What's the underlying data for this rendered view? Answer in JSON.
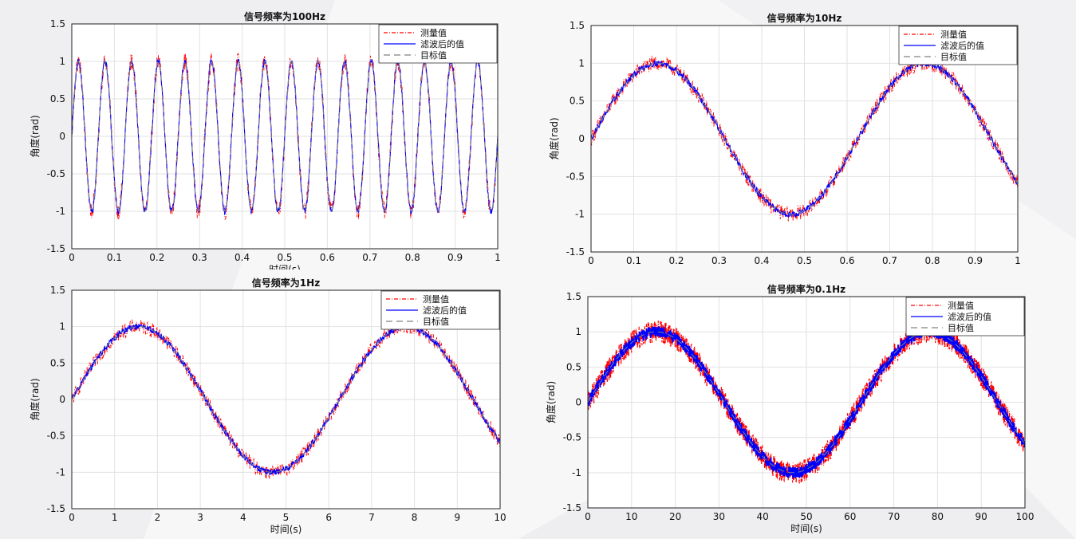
{
  "chart_data": [
    {
      "type": "line",
      "title": "信号频率为100Hz",
      "xlabel": "时间(s)",
      "ylabel": "角度(rad)",
      "xlim": [
        0,
        1
      ],
      "ylim": [
        -1.5,
        1.5
      ],
      "xticks": [
        "0",
        "0.1",
        "0.2",
        "0.3",
        "0.4",
        "0.5",
        "0.6",
        "0.7",
        "0.8",
        "0.9",
        "1"
      ],
      "yticks": [
        "1.5",
        "1",
        "0.5",
        "0",
        "-0.5",
        "-1",
        "-1.5"
      ],
      "grid": true,
      "legend_position": "top-right",
      "series": [
        {
          "name": "测量值",
          "style": "dash-dot",
          "color": "#ff0000",
          "signal": {
            "amplitude": 1,
            "cycles": 16,
            "noise": 0.12
          }
        },
        {
          "name": "滤波后的值",
          "style": "solid",
          "color": "#0000ff",
          "signal": {
            "amplitude": 1,
            "cycles": 16,
            "noise": 0.04
          }
        },
        {
          "name": "目标值",
          "style": "dashed",
          "color": "#808080",
          "signal": {
            "amplitude": 1,
            "cycles": 16,
            "noise": 0
          }
        }
      ]
    },
    {
      "type": "line",
      "title": "信号频率为10Hz",
      "xlabel": "",
      "ylabel": "角度(rad)",
      "xlim": [
        0,
        1
      ],
      "ylim": [
        -1.5,
        1.5
      ],
      "xticks": [
        "0",
        "0.1",
        "0.2",
        "0.3",
        "0.4",
        "0.5",
        "0.6",
        "0.7",
        "0.8",
        "0.9",
        "1"
      ],
      "yticks": [
        "1.5",
        "1",
        "0.5",
        "0",
        "-0.5",
        "-1",
        "-1.5"
      ],
      "grid": true,
      "legend_position": "top-right",
      "series": [
        {
          "name": "测量值",
          "style": "dash-dot",
          "color": "#ff0000",
          "signal": {
            "amplitude": 1,
            "cycles": 1.6,
            "noise": 0.1
          }
        },
        {
          "name": "滤波后的值",
          "style": "solid",
          "color": "#0000ff",
          "signal": {
            "amplitude": 1,
            "cycles": 1.6,
            "noise": 0.04
          }
        },
        {
          "name": "目标值",
          "style": "dashed",
          "color": "#808080",
          "signal": {
            "amplitude": 1,
            "cycles": 1.6,
            "noise": 0
          }
        }
      ]
    },
    {
      "type": "line",
      "title": "信号频率为1Hz",
      "xlabel": "时间(s)",
      "ylabel": "角度(rad)",
      "xlim": [
        0,
        10
      ],
      "ylim": [
        -1.5,
        1.5
      ],
      "xticks": [
        "0",
        "1",
        "2",
        "3",
        "4",
        "5",
        "6",
        "7",
        "8",
        "9",
        "10"
      ],
      "yticks": [
        "1.5",
        "1",
        "0.5",
        "0",
        "-0.5",
        "-1",
        "-1.5"
      ],
      "grid": true,
      "legend_position": "top-right",
      "series": [
        {
          "name": "测量值",
          "style": "dash-dot",
          "color": "#ff0000",
          "signal": {
            "amplitude": 1,
            "cycles": 1.6,
            "noise": 0.1
          }
        },
        {
          "name": "滤波后的值",
          "style": "solid",
          "color": "#0000ff",
          "signal": {
            "amplitude": 1,
            "cycles": 1.6,
            "noise": 0.04
          }
        },
        {
          "name": "目标值",
          "style": "dashed",
          "color": "#808080",
          "signal": {
            "amplitude": 1,
            "cycles": 1.6,
            "noise": 0
          }
        }
      ]
    },
    {
      "type": "line",
      "title": "信号频率为0.1Hz",
      "xlabel": "时间(s)",
      "ylabel": "角度(rad)",
      "xlim": [
        0,
        100
      ],
      "ylim": [
        -1.5,
        1.5
      ],
      "xticks": [
        "0",
        "10",
        "20",
        "30",
        "40",
        "50",
        "60",
        "70",
        "80",
        "90",
        "100"
      ],
      "yticks": [
        "1.5",
        "1",
        "0.5",
        "0",
        "-0.5",
        "-1",
        "-1.5"
      ],
      "grid": true,
      "legend_position": "top-right",
      "series": [
        {
          "name": "测量值",
          "style": "dash-dot",
          "color": "#ff0000",
          "signal": {
            "amplitude": 1,
            "cycles": 1.6,
            "noise": 0.16
          }
        },
        {
          "name": "滤波后的值",
          "style": "solid",
          "color": "#0000ff",
          "signal": {
            "amplitude": 1,
            "cycles": 1.6,
            "noise": 0.08
          }
        },
        {
          "name": "目标值",
          "style": "dashed",
          "color": "#808080",
          "signal": {
            "amplitude": 1,
            "cycles": 1.6,
            "noise": 0
          }
        }
      ]
    }
  ]
}
